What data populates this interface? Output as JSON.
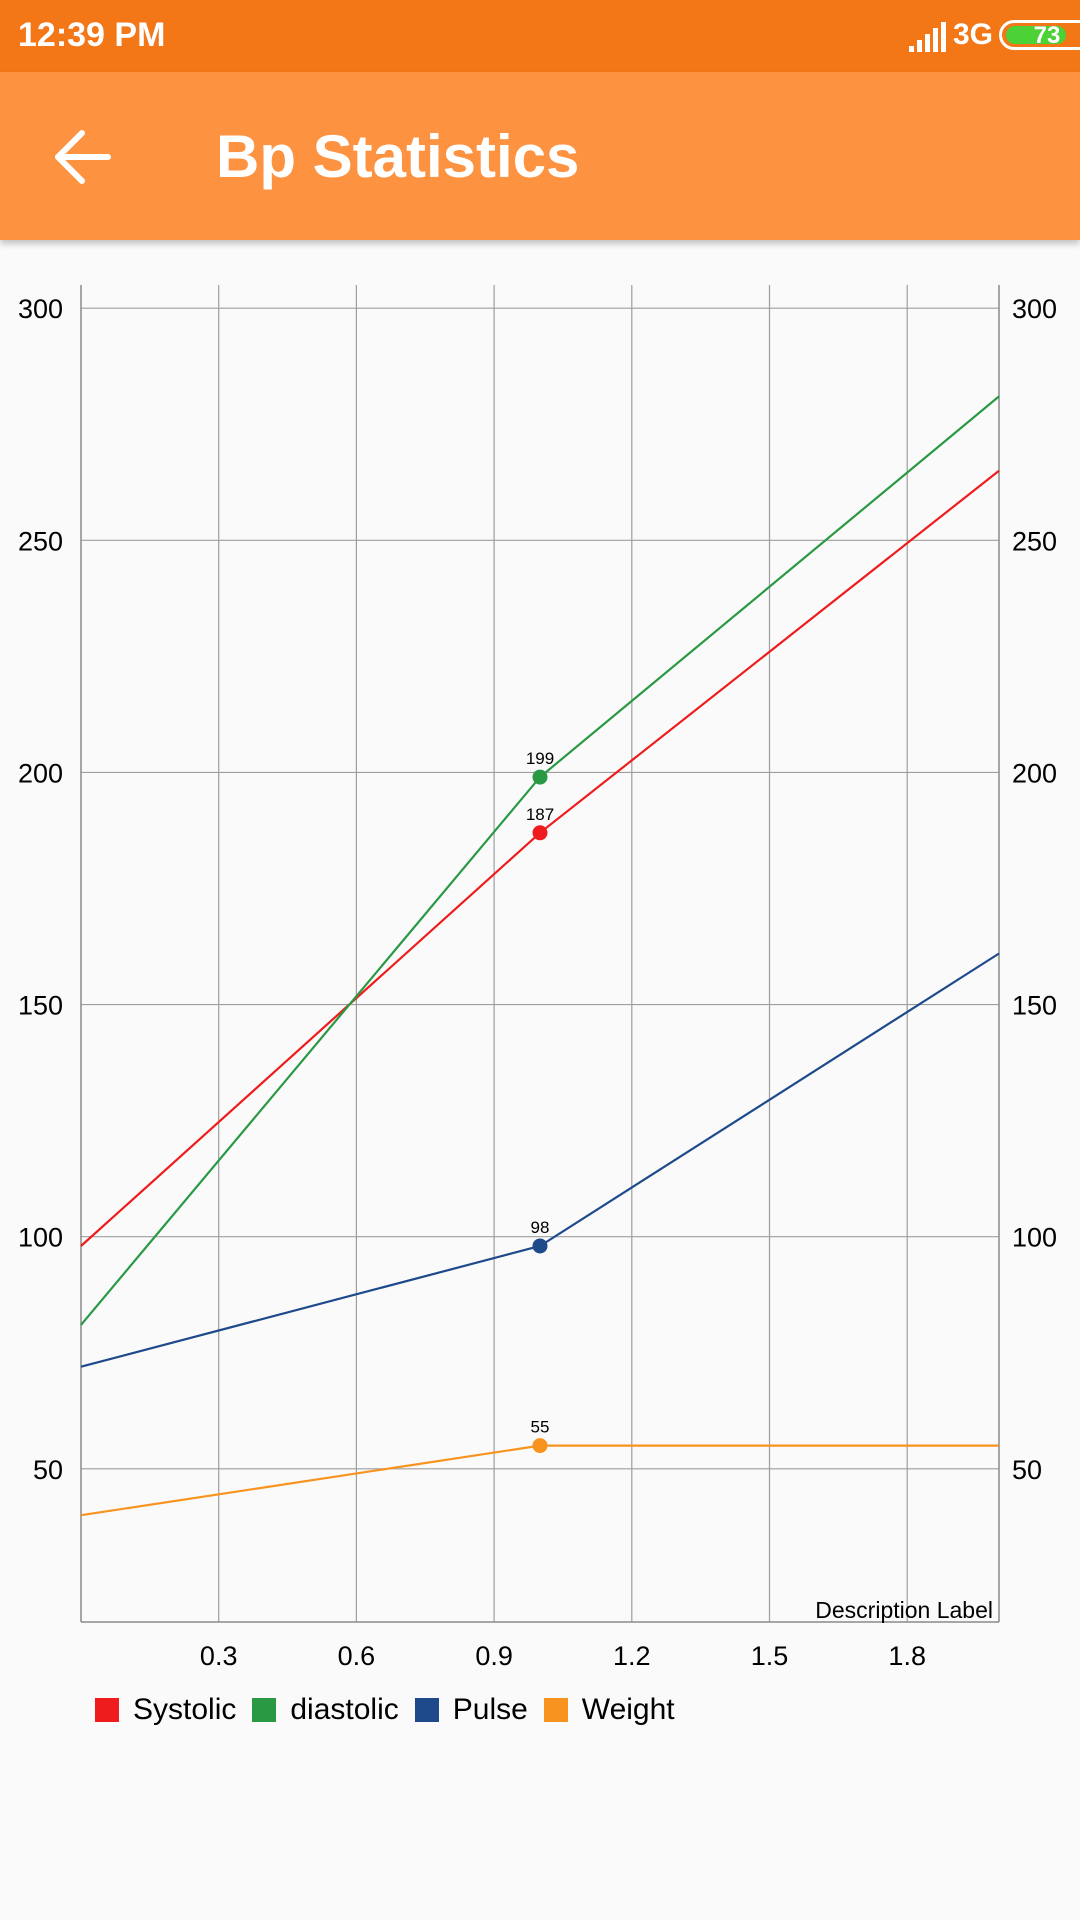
{
  "status_bar": {
    "time": "12:39 PM",
    "network": "3G",
    "battery": "73",
    "battery_level": 0.73,
    "signal_icon": "signal-bars-icon"
  },
  "app_bar": {
    "title": "Bp Statistics",
    "back_icon": "arrow-left-icon"
  },
  "colors": {
    "status_bar": "#F37617",
    "app_bar": "#FD9241",
    "systolic": "#EE1C1C",
    "diastolic": "#2A9944",
    "pulse": "#1E4A8C",
    "weight": "#F7931E"
  },
  "chart_data": {
    "type": "line",
    "description": "Description Label",
    "xlim": [
      0,
      2
    ],
    "ylim": [
      17,
      305
    ],
    "x_ticks": [
      0.3,
      0.6,
      0.9,
      1.2,
      1.5,
      1.8
    ],
    "x_tick_labels": [
      "0.3",
      "0.6",
      "0.9",
      "1.2",
      "1.5",
      "1.8"
    ],
    "y_ticks": [
      50,
      100,
      150,
      200,
      250,
      300
    ],
    "y_tick_labels": [
      "50",
      "100",
      "150",
      "200",
      "250",
      "300"
    ],
    "grid": true,
    "right_axis": true,
    "legend_position": "bottom-left",
    "series": [
      {
        "name": "Systolic",
        "color": "#EE1C1C",
        "x": [
          0,
          1,
          2
        ],
        "y": [
          98,
          187,
          265
        ],
        "points": [
          {
            "x": 1,
            "y": 187,
            "label": "187"
          }
        ]
      },
      {
        "name": "diastolic",
        "color": "#2A9944",
        "x": [
          0,
          1,
          2
        ],
        "y": [
          81,
          199,
          281
        ],
        "points": [
          {
            "x": 1,
            "y": 199,
            "label": "199"
          }
        ]
      },
      {
        "name": "Pulse",
        "color": "#1E4A8C",
        "x": [
          0,
          1,
          2
        ],
        "y": [
          72,
          98,
          161
        ],
        "points": [
          {
            "x": 1,
            "y": 98,
            "label": "98"
          }
        ]
      },
      {
        "name": "Weight",
        "color": "#F7931E",
        "x": [
          0,
          1,
          2
        ],
        "y": [
          40,
          55,
          55
        ],
        "points": [
          {
            "x": 1,
            "y": 55,
            "label": "55"
          }
        ]
      }
    ]
  }
}
